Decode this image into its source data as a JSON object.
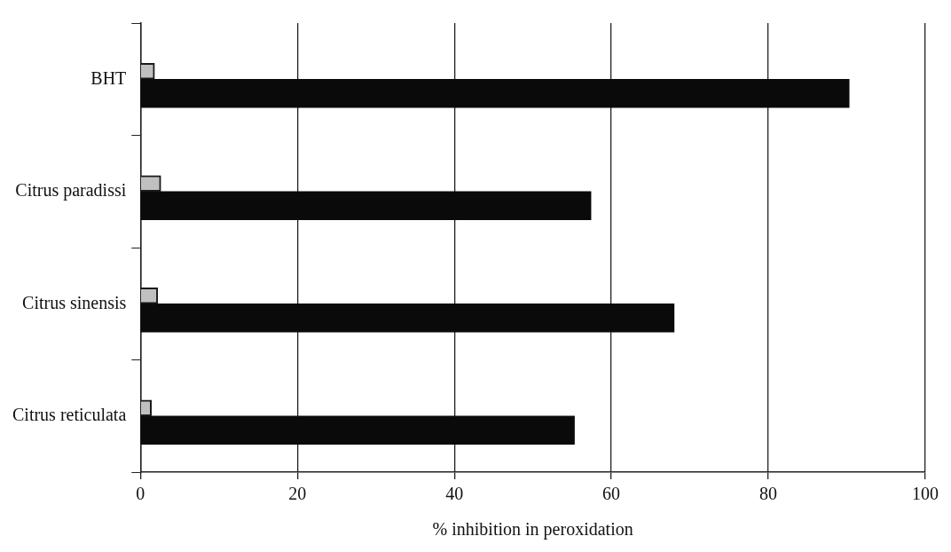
{
  "chart_data": {
    "type": "bar",
    "orientation": "horizontal",
    "xlabel": "% inhibition in peroxidation",
    "categories": [
      "BHT",
      "Citrus paradissi",
      "Citrus sinensis",
      "Citrus reticulata"
    ],
    "series": [
      {
        "color": "#c0c0c0",
        "values": [
          1.8,
          2.6,
          2.2,
          1.4
        ]
      },
      {
        "color": "#0a0a0a",
        "values": [
          90.3,
          57.4,
          68.0,
          55.3
        ]
      }
    ],
    "xlim": [
      0,
      100
    ],
    "xticks": [
      0,
      20,
      40,
      60,
      80,
      100
    ],
    "grid": "x",
    "legend": false
  }
}
